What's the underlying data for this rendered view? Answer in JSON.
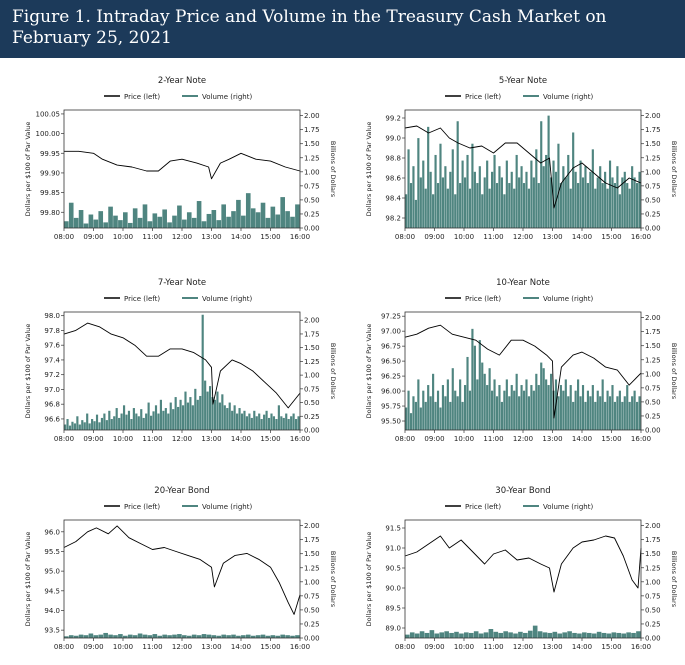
{
  "figure": {
    "title": "Figure 1. Intraday Price and Volume in the Treasury Cash Market on February 25, 2021"
  },
  "colors": {
    "header_bg": "#1c3a5a",
    "price": "#000000",
    "volume": "#4f8580"
  },
  "chart_data": [
    {
      "type": "line",
      "title": "2-Year Note",
      "legend": [
        "Price (left)",
        "Volume (right)"
      ],
      "ylabel": "Dollars per $100 of Par Value",
      "y2label": "Billions of Dollars",
      "x_ticks": [
        "08:00",
        "09:00",
        "10:00",
        "11:00",
        "12:00",
        "13:00",
        "14:00",
        "15:00",
        "16:00"
      ],
      "ylim": [
        99.76,
        100.06
      ],
      "y_ticks": [
        99.8,
        99.85,
        99.9,
        99.95,
        100.0,
        100.05
      ],
      "y_tick_labels": [
        "99.80",
        "99.85",
        "99.90",
        "99.95",
        "100.00",
        "100.05"
      ],
      "y2lim": [
        0,
        2.1
      ],
      "y2_ticks": [
        0,
        0.25,
        0.5,
        0.75,
        1.0,
        1.25,
        1.5,
        1.75,
        2.0
      ],
      "y2_tick_labels": [
        "0.00",
        "0.25",
        "0.50",
        "0.75",
        "1.00",
        "1.25",
        "1.50",
        "1.75",
        "2.00"
      ],
      "price_series": {
        "x": [
          8.0,
          8.5,
          9.0,
          9.3,
          9.8,
          10.3,
          10.8,
          11.2,
          11.6,
          12.0,
          12.5,
          12.9,
          13.0,
          13.3,
          13.6,
          14.0,
          14.5,
          15.0,
          15.5,
          16.0
        ],
        "y": [
          99.955,
          99.955,
          99.95,
          99.935,
          99.92,
          99.915,
          99.905,
          99.905,
          99.93,
          99.935,
          99.925,
          99.915,
          99.885,
          99.925,
          99.935,
          99.95,
          99.935,
          99.93,
          99.915,
          99.905
        ]
      },
      "volume_series": {
        "x_start": 8.0,
        "x_step": 0.1667,
        "values": [
          0.12,
          0.45,
          0.18,
          0.32,
          0.08,
          0.24,
          0.15,
          0.3,
          0.1,
          0.38,
          0.22,
          0.14,
          0.28,
          0.09,
          0.35,
          0.18,
          0.42,
          0.12,
          0.26,
          0.2,
          0.33,
          0.1,
          0.22,
          0.4,
          0.15,
          0.28,
          0.18,
          0.48,
          0.12,
          0.25,
          0.32,
          0.14,
          0.42,
          0.2,
          0.3,
          0.5,
          0.22,
          0.62,
          0.35,
          0.28,
          0.45,
          0.18,
          0.38,
          0.24,
          0.55,
          0.3,
          0.2,
          0.42
        ]
      }
    },
    {
      "type": "line",
      "title": "5-Year Note",
      "legend": [
        "Price (left)",
        "Volume (right)"
      ],
      "ylabel": "Dollars per $100 of Par Value",
      "y2label": "Billions of Dollars",
      "x_ticks": [
        "08:00",
        "09:00",
        "10:00",
        "11:00",
        "12:00",
        "13:00",
        "14:00",
        "15:00",
        "16:00"
      ],
      "ylim": [
        98.1,
        99.28
      ],
      "y_ticks": [
        98.2,
        98.4,
        98.6,
        98.8,
        99.0,
        99.2
      ],
      "y_tick_labels": [
        "98.2",
        "98.4",
        "98.6",
        "98.8",
        "99.0",
        "99.2"
      ],
      "y2lim": [
        0,
        2.1
      ],
      "y2_ticks": [
        0,
        0.25,
        0.5,
        0.75,
        1.0,
        1.25,
        1.5,
        1.75,
        2.0
      ],
      "y2_tick_labels": [
        "0.00",
        "0.25",
        "0.50",
        "0.75",
        "1.00",
        "1.25",
        "1.50",
        "1.75",
        "2.00"
      ],
      "price_series": {
        "x": [
          8.0,
          8.4,
          8.8,
          9.2,
          9.5,
          9.8,
          10.2,
          10.6,
          11.0,
          11.4,
          11.8,
          12.2,
          12.6,
          12.9,
          13.05,
          13.3,
          13.7,
          14.0,
          14.4,
          14.8,
          15.2,
          15.6,
          16.0
        ],
        "y": [
          99.1,
          99.12,
          99.05,
          99.1,
          99.0,
          98.95,
          98.9,
          98.92,
          98.85,
          98.95,
          98.95,
          98.85,
          98.75,
          98.8,
          98.3,
          98.55,
          98.7,
          98.75,
          98.65,
          98.55,
          98.5,
          98.6,
          98.55
        ]
      },
      "volume_series": {
        "x_start": 8.0,
        "x_step": 0.0833,
        "values": [
          0.6,
          1.4,
          0.8,
          1.1,
          0.5,
          1.6,
          0.9,
          1.2,
          0.7,
          1.8,
          1.0,
          0.6,
          1.3,
          0.8,
          1.5,
          0.9,
          1.1,
          0.7,
          1.0,
          1.4,
          0.6,
          1.9,
          0.8,
          1.2,
          0.9,
          1.3,
          0.7,
          1.5,
          1.0,
          0.8,
          1.1,
          0.6,
          0.9,
          1.2,
          0.7,
          1.0,
          1.3,
          0.8,
          1.1,
          0.9,
          0.6,
          1.2,
          0.8,
          1.0,
          0.7,
          1.3,
          0.9,
          1.1,
          0.8,
          1.0,
          0.7,
          1.2,
          0.9,
          1.4,
          0.8,
          1.9,
          1.1,
          1.3,
          2.0,
          0.9,
          1.2,
          1.0,
          1.5,
          0.8,
          1.1,
          0.9,
          1.3,
          0.7,
          1.7,
          1.0,
          0.8,
          1.2,
          0.9,
          1.1,
          0.8,
          1.0,
          1.4,
          0.7,
          0.9,
          1.1,
          0.8,
          1.0,
          0.7,
          1.2,
          0.9,
          0.8,
          1.1,
          0.6,
          0.9,
          1.0,
          0.8,
          0.7,
          1.1,
          0.9,
          0.8,
          1.0
        ]
      }
    },
    {
      "type": "line",
      "title": "7-Year Note",
      "legend": [
        "Price (left)",
        "Volume (right)"
      ],
      "ylabel": "Dollars per $100 of Par Value",
      "y2label": "Billions of Dollars",
      "x_ticks": [
        "08:00",
        "09:00",
        "10:00",
        "11:00",
        "12:00",
        "13:00",
        "14:00",
        "15:00",
        "16:00"
      ],
      "ylim": [
        96.45,
        98.05
      ],
      "y_ticks": [
        96.6,
        96.8,
        97.0,
        97.2,
        97.4,
        97.6,
        97.8,
        98.0
      ],
      "y_tick_labels": [
        "96.6",
        "96.8",
        "97.0",
        "97.2",
        "97.4",
        "97.6",
        "97.8",
        "98.0"
      ],
      "y2lim": [
        0,
        2.15
      ],
      "y2_ticks": [
        0,
        0.25,
        0.5,
        0.75,
        1.0,
        1.25,
        1.5,
        1.75,
        2.0
      ],
      "y2_tick_labels": [
        "0.00",
        "0.25",
        "0.50",
        "0.75",
        "1.00",
        "1.25",
        "1.50",
        "1.75",
        "2.00"
      ],
      "price_series": {
        "x": [
          8.0,
          8.4,
          8.8,
          9.2,
          9.6,
          10.0,
          10.4,
          10.8,
          11.2,
          11.6,
          12.0,
          12.4,
          12.8,
          13.0,
          13.05,
          13.3,
          13.7,
          14.0,
          14.4,
          14.8,
          15.2,
          15.6,
          16.0
        ],
        "y": [
          97.75,
          97.8,
          97.9,
          97.85,
          97.75,
          97.7,
          97.6,
          97.45,
          97.45,
          97.55,
          97.55,
          97.5,
          97.4,
          97.3,
          96.8,
          97.25,
          97.4,
          97.35,
          97.25,
          97.1,
          96.95,
          96.75,
          96.95
        ]
      },
      "volume_series": {
        "x_start": 8.0,
        "x_step": 0.0833,
        "values": [
          0.1,
          0.2,
          0.08,
          0.15,
          0.12,
          0.25,
          0.1,
          0.18,
          0.14,
          0.3,
          0.12,
          0.2,
          0.16,
          0.28,
          0.14,
          0.22,
          0.3,
          0.18,
          0.35,
          0.2,
          0.25,
          0.4,
          0.22,
          0.3,
          0.45,
          0.28,
          0.35,
          0.2,
          0.4,
          0.3,
          0.25,
          0.38,
          0.22,
          0.3,
          0.5,
          0.26,
          0.34,
          0.45,
          0.3,
          0.55,
          0.35,
          0.4,
          0.3,
          0.5,
          0.38,
          0.6,
          0.42,
          0.55,
          0.45,
          0.7,
          0.5,
          0.6,
          0.45,
          0.75,
          0.55,
          0.62,
          2.1,
          0.9,
          0.7,
          0.8,
          0.6,
          0.55,
          0.7,
          0.5,
          0.65,
          0.45,
          0.4,
          0.5,
          0.35,
          0.45,
          0.3,
          0.4,
          0.3,
          0.35,
          0.25,
          0.3,
          0.22,
          0.35,
          0.25,
          0.3,
          0.2,
          0.28,
          0.35,
          0.22,
          0.3,
          0.25,
          0.2,
          0.45,
          0.25,
          0.22,
          0.3,
          0.2,
          0.25,
          0.3,
          0.2,
          0.25
        ]
      }
    },
    {
      "type": "line",
      "title": "10-Year Note",
      "legend": [
        "Price (left)",
        "Volume (right)"
      ],
      "ylabel": "Dollars per $100 of Par Value",
      "y2label": "Billions of Dollars",
      "x_ticks": [
        "08:00",
        "09:00",
        "10:00",
        "11:00",
        "12:00",
        "13:00",
        "14:00",
        "15:00",
        "16:00"
      ],
      "ylim": [
        95.35,
        97.32
      ],
      "y_ticks": [
        95.5,
        95.75,
        96.0,
        96.25,
        96.5,
        96.75,
        97.0,
        97.25
      ],
      "y_tick_labels": [
        "95.50",
        "95.75",
        "96.00",
        "96.25",
        "96.50",
        "96.75",
        "97.00",
        "97.25"
      ],
      "y2lim": [
        0,
        2.1
      ],
      "y2_ticks": [
        0,
        0.25,
        0.5,
        0.75,
        1.0,
        1.25,
        1.5,
        1.75,
        2.0
      ],
      "y2_tick_labels": [
        "0.00",
        "0.25",
        "0.50",
        "0.75",
        "1.00",
        "1.25",
        "1.50",
        "1.75",
        "2.00"
      ],
      "price_series": {
        "x": [
          8.0,
          8.4,
          8.8,
          9.2,
          9.6,
          10.0,
          10.4,
          10.8,
          11.2,
          11.6,
          12.0,
          12.4,
          12.8,
          13.0,
          13.05,
          13.3,
          13.7,
          14.0,
          14.4,
          14.8,
          15.2,
          15.6,
          16.0
        ],
        "y": [
          96.9,
          96.95,
          97.05,
          97.1,
          96.95,
          96.9,
          96.85,
          96.7,
          96.6,
          96.85,
          96.85,
          96.75,
          96.6,
          96.5,
          95.55,
          96.4,
          96.6,
          96.65,
          96.55,
          96.4,
          96.35,
          96.1,
          96.3
        ]
      },
      "volume_series": {
        "x_start": 8.0,
        "x_step": 0.0833,
        "values": [
          0.4,
          0.7,
          0.3,
          0.6,
          0.5,
          0.9,
          0.4,
          0.7,
          0.5,
          0.8,
          0.6,
          1.0,
          0.5,
          0.7,
          0.4,
          0.8,
          0.6,
          0.9,
          0.5,
          1.1,
          0.7,
          0.6,
          0.9,
          0.5,
          0.8,
          1.3,
          0.7,
          1.8,
          1.5,
          0.9,
          1.6,
          1.2,
          1.0,
          0.8,
          1.1,
          0.7,
          0.9,
          0.6,
          0.8,
          0.5,
          0.7,
          0.9,
          0.6,
          0.8,
          0.7,
          1.0,
          0.6,
          0.8,
          0.7,
          0.9,
          0.6,
          0.8,
          0.7,
          1.0,
          0.8,
          1.2,
          1.1,
          0.9,
          0.8,
          1.0,
          0.7,
          0.9,
          0.6,
          0.8,
          0.7,
          0.9,
          0.6,
          0.8,
          0.5,
          0.7,
          0.9,
          0.6,
          0.8,
          0.5,
          0.7,
          0.6,
          0.8,
          0.5,
          0.7,
          0.6,
          0.9,
          0.5,
          0.7,
          0.6,
          0.8,
          0.5,
          0.6,
          0.7,
          0.5,
          0.6,
          0.8,
          0.5,
          0.6,
          0.7,
          0.5,
          0.6
        ]
      }
    },
    {
      "type": "line",
      "title": "20-Year Bond",
      "legend": [
        "Price (left)",
        "Volume (right)"
      ],
      "ylabel": "Dollars per $100 of Par Value",
      "y2label": "Billions of Dollars",
      "x_ticks": [
        "08:00",
        "09:00",
        "10:00",
        "11:00",
        "12:00",
        "13:00",
        "14:00",
        "15:00",
        "16:00"
      ],
      "ylim": [
        93.3,
        96.3
      ],
      "y_ticks": [
        93.5,
        94.0,
        94.5,
        95.0,
        95.5,
        96.0
      ],
      "y_tick_labels": [
        "93.5",
        "94.0",
        "94.5",
        "95.0",
        "95.5",
        "96.0"
      ],
      "y2lim": [
        0,
        2.1
      ],
      "y2_ticks": [
        0,
        0.25,
        0.5,
        0.75,
        1.0,
        1.25,
        1.5,
        1.75,
        2.0
      ],
      "y2_tick_labels": [
        "0.00",
        "0.25",
        "0.50",
        "0.75",
        "1.00",
        "1.25",
        "1.50",
        "1.75",
        "2.00"
      ],
      "price_series": {
        "x": [
          8.0,
          8.4,
          8.8,
          9.1,
          9.5,
          9.8,
          10.2,
          10.6,
          11.0,
          11.4,
          11.8,
          12.2,
          12.6,
          13.0,
          13.1,
          13.4,
          13.8,
          14.2,
          14.6,
          15.0,
          15.3,
          15.6,
          15.8,
          16.0
        ],
        "y": [
          95.6,
          95.75,
          96.0,
          96.1,
          95.95,
          96.15,
          95.85,
          95.7,
          95.55,
          95.6,
          95.5,
          95.4,
          95.3,
          95.1,
          94.6,
          95.2,
          95.4,
          95.45,
          95.3,
          95.1,
          94.7,
          94.2,
          93.9,
          94.4
        ]
      },
      "volume_series": {
        "x_start": 8.0,
        "x_step": 0.1667,
        "values": [
          0.03,
          0.05,
          0.04,
          0.06,
          0.05,
          0.08,
          0.05,
          0.06,
          0.09,
          0.06,
          0.05,
          0.07,
          0.04,
          0.06,
          0.05,
          0.08,
          0.06,
          0.05,
          0.07,
          0.04,
          0.06,
          0.05,
          0.06,
          0.07,
          0.05,
          0.04,
          0.06,
          0.05,
          0.07,
          0.06,
          0.05,
          0.04,
          0.06,
          0.05,
          0.06,
          0.04,
          0.05,
          0.06,
          0.04,
          0.05,
          0.06,
          0.04,
          0.05,
          0.04,
          0.06,
          0.05,
          0.04,
          0.05
        ]
      }
    },
    {
      "type": "line",
      "title": "30-Year Bond",
      "legend": [
        "Price (left)",
        "Volume (right)"
      ],
      "ylabel": "Dollars per $100 of Par Value",
      "y2label": "Billions of Dollars",
      "x_ticks": [
        "08:00",
        "09:00",
        "10:00",
        "11:00",
        "12:00",
        "13:00",
        "14:00",
        "15:00",
        "16:00"
      ],
      "ylim": [
        88.75,
        91.7
      ],
      "y_ticks": [
        89.0,
        89.5,
        90.0,
        90.5,
        91.0,
        91.5
      ],
      "y_tick_labels": [
        "89.0",
        "89.5",
        "90.0",
        "90.5",
        "91.0",
        "91.5"
      ],
      "y2lim": [
        0,
        2.1
      ],
      "y2_ticks": [
        0,
        0.25,
        0.5,
        0.75,
        1.0,
        1.25,
        1.5,
        1.75,
        2.0
      ],
      "y2_tick_labels": [
        "0.00",
        "0.25",
        "0.50",
        "0.75",
        "1.00",
        "1.25",
        "1.50",
        "1.75",
        "2.00"
      ],
      "price_series": {
        "x": [
          8.0,
          8.4,
          8.8,
          9.2,
          9.5,
          9.9,
          10.3,
          10.7,
          11.0,
          11.4,
          11.8,
          12.2,
          12.6,
          12.9,
          13.05,
          13.3,
          13.7,
          14.0,
          14.4,
          14.8,
          15.1,
          15.4,
          15.7,
          15.9,
          16.0
        ],
        "y": [
          90.8,
          90.9,
          91.1,
          91.3,
          91.0,
          91.2,
          90.9,
          90.6,
          90.85,
          90.95,
          90.7,
          90.75,
          90.6,
          90.5,
          89.9,
          90.6,
          91.0,
          91.15,
          91.2,
          91.3,
          91.25,
          90.8,
          90.2,
          90.0,
          91.0
        ]
      },
      "volume_series": {
        "x_start": 8.0,
        "x_step": 0.1667,
        "values": [
          0.06,
          0.1,
          0.08,
          0.12,
          0.09,
          0.14,
          0.08,
          0.1,
          0.12,
          0.09,
          0.11,
          0.08,
          0.1,
          0.09,
          0.12,
          0.08,
          0.1,
          0.16,
          0.11,
          0.09,
          0.12,
          0.1,
          0.08,
          0.11,
          0.09,
          0.13,
          0.22,
          0.12,
          0.1,
          0.09,
          0.11,
          0.08,
          0.1,
          0.12,
          0.09,
          0.08,
          0.1,
          0.09,
          0.08,
          0.11,
          0.09,
          0.08,
          0.1,
          0.09,
          0.08,
          0.1,
          0.09,
          0.12
        ]
      }
    }
  ]
}
